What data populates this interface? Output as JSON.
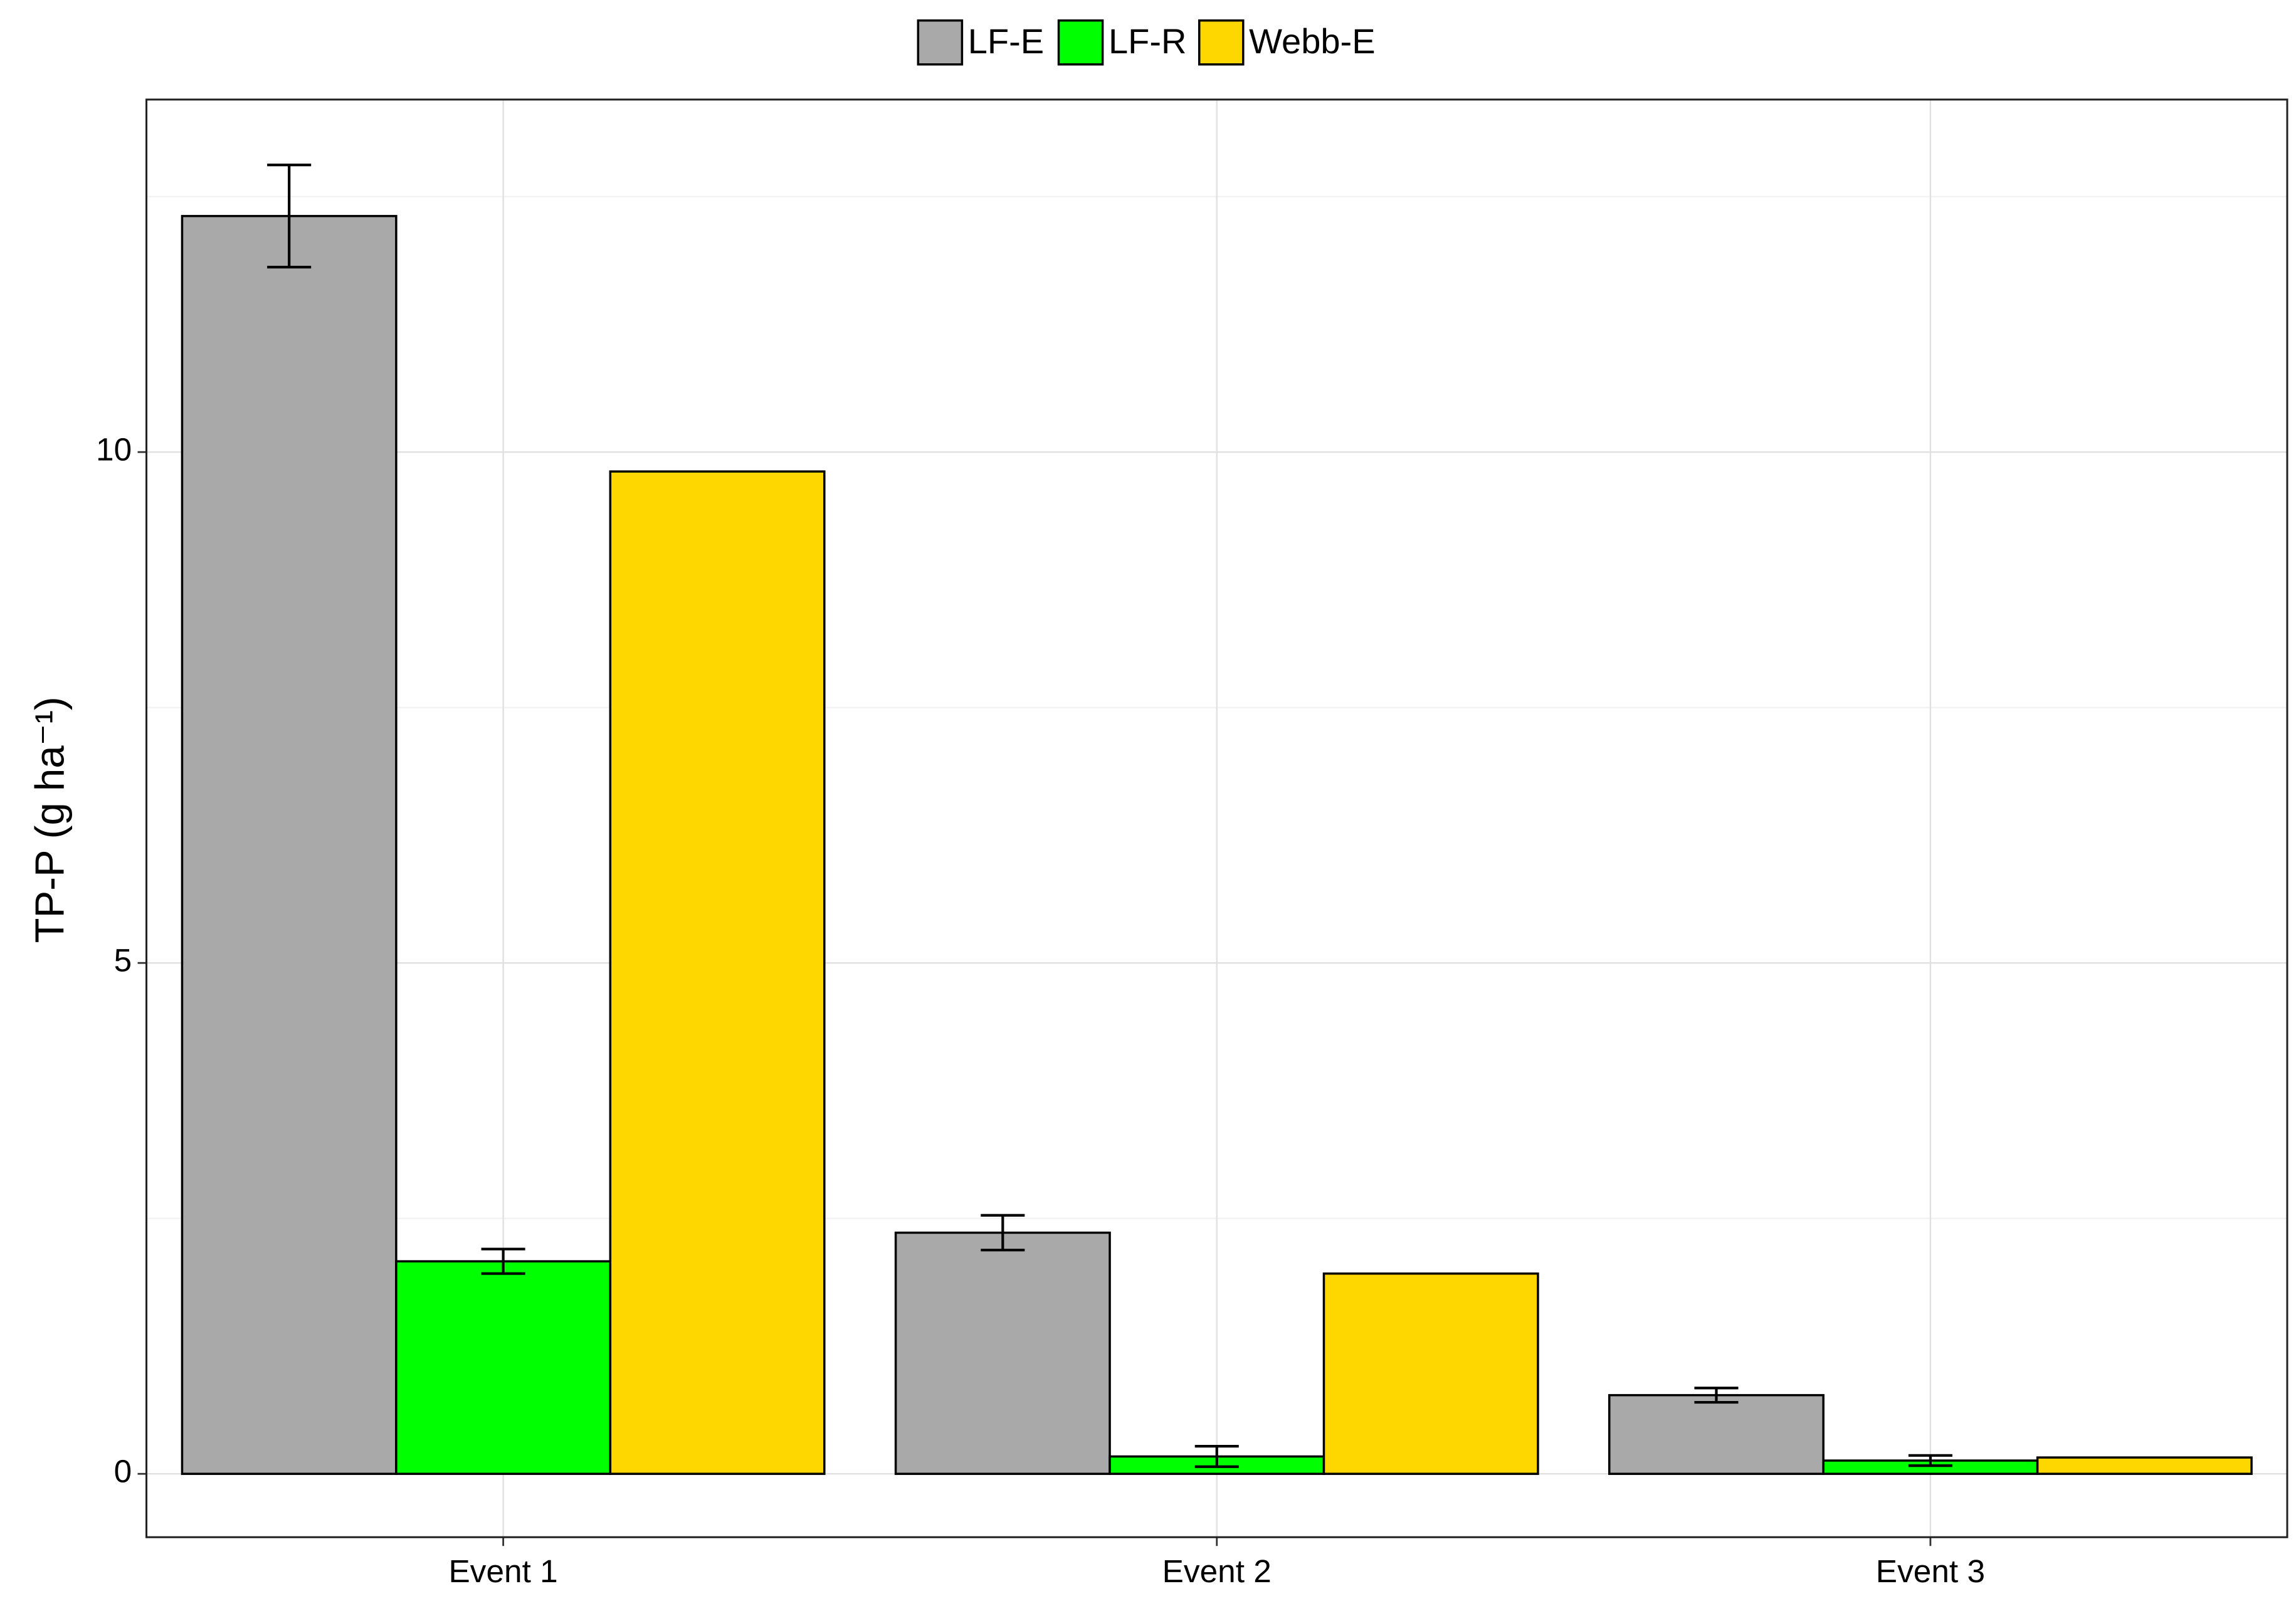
{
  "chart_data": {
    "type": "bar",
    "y_label": "TP-P (g ha⁻¹)",
    "categories": [
      "Event 1",
      "Event 2",
      "Event 3"
    ],
    "series": [
      {
        "name": "LF-E",
        "color": "#a9a9a9",
        "values": [
          12.31,
          2.36,
          0.77
        ],
        "errors": [
          0.5,
          0.17,
          0.07
        ]
      },
      {
        "name": "LF-R",
        "color": "#00ff00",
        "values": [
          2.08,
          0.17,
          0.13
        ],
        "errors": [
          0.12,
          0.1,
          0.05
        ]
      },
      {
        "name": "Webb-E",
        "color": "#ffd700",
        "values": [
          9.81,
          1.96,
          0.16
        ],
        "errors": [
          null,
          null,
          null
        ]
      }
    ],
    "ylim": [
      -0.62,
      13.45
    ],
    "yticks": [
      0,
      5,
      10
    ],
    "minor_yticks": [
      2.5,
      7.5,
      12.5
    ],
    "grid": true,
    "legend": "top"
  }
}
